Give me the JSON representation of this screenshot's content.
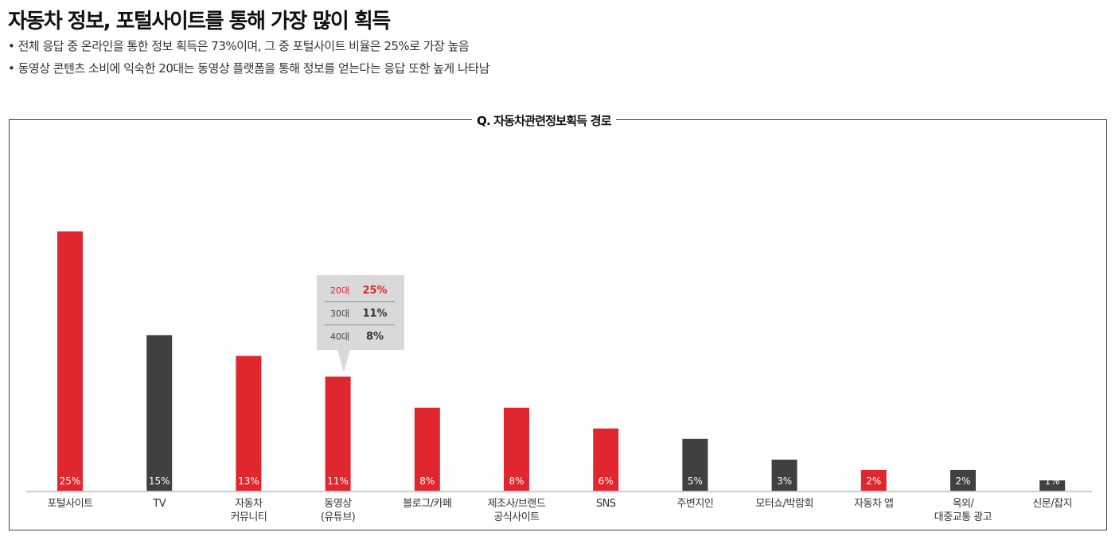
{
  "header": {
    "title": "자동차 정보, 포털사이트를 통해 가장 많이 획득",
    "bullets": [
      "• 전체 응답 중 온라인을 통한 정보 획득은 73%이며, 그 중 포털사이트 비율은 25%로 가장 높음",
      "• 동영상 콘텐츠 소비에 익숙한 20대는 동영상 플랫폼을 통해 정보를 얻는다는 응답 또한 높게 나타남"
    ]
  },
  "colors": {
    "accent_red": "#e0262e",
    "dark_gray": "#404040",
    "tooltip_bg": "#d9d9d9"
  },
  "tooltip": {
    "rows": [
      {
        "label": "20대",
        "value": "25%",
        "highlight": true
      },
      {
        "label": "30대",
        "value": "11%",
        "highlight": false
      },
      {
        "label": "40대",
        "value": "8%",
        "highlight": false
      }
    ]
  },
  "chart_data": {
    "type": "bar",
    "title": "Q. 자동차관련정보획득 경로",
    "xlabel": "",
    "ylabel": "",
    "ylim": [
      0,
      25
    ],
    "grid": false,
    "legend": "none",
    "categories": [
      [
        "포털사이트"
      ],
      [
        "TV"
      ],
      [
        "자동차",
        "커뮤니티"
      ],
      [
        "동영상",
        "(유튜브)"
      ],
      [
        "블로그/카페"
      ],
      [
        "제조사/브랜드",
        "공식사이트"
      ],
      [
        "SNS"
      ],
      [
        "주변지인"
      ],
      [
        "모터쇼/박람회"
      ],
      [
        "자동차 앱"
      ],
      [
        "옥외/",
        "대중교통 광고"
      ],
      [
        "신문/잡지"
      ]
    ],
    "values": [
      25,
      15,
      13,
      11,
      8,
      8,
      6,
      5,
      3,
      2,
      2,
      1
    ],
    "value_labels": [
      "25%",
      "15%",
      "13%",
      "11%",
      "8%",
      "8%",
      "6%",
      "5%",
      "3%",
      "2%",
      "2%",
      "1%"
    ],
    "bar_colors": [
      "red",
      "dark",
      "red",
      "red",
      "red",
      "red",
      "red",
      "dark",
      "dark",
      "red",
      "dark",
      "dark"
    ]
  }
}
